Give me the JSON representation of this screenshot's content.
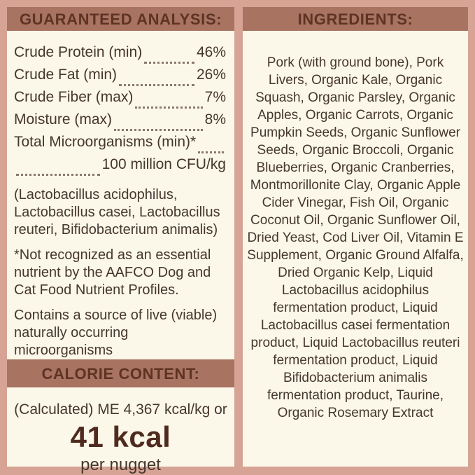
{
  "colors": {
    "frame_pink": "#d6a394",
    "band_terracotta": "#a87361",
    "panel_cream": "#fbf7e9",
    "body_text": "#46372d",
    "header_text": "#5e3324",
    "accent_value_text": "#4f2b1f"
  },
  "guaranteed_analysis": {
    "title": "GUARANTEED ANALYSIS:",
    "rows": [
      {
        "label": "Crude Protein (min)",
        "value": "46%"
      },
      {
        "label": "Crude Fat (min)",
        "value": "26%"
      },
      {
        "label": "Crude Fiber (max)",
        "value": "7%"
      },
      {
        "label": "Moisture (max)",
        "value": "8%"
      },
      {
        "label": "Total Microorganisms (min)*",
        "value": ""
      },
      {
        "label": "",
        "value": "100 million CFU/kg"
      }
    ],
    "notes": [
      "(Lactobacillus acidophilus, Lactobacillus casei, Lactobacillus reuteri, Bifidobacterium animalis)",
      "*Not recognized as an essential nutrient by the AAFCO Dog and Cat Food Nutrient Profiles.",
      "Contains a source of live (viable) naturally occurring microorganisms"
    ]
  },
  "calorie_content": {
    "title": "CALORIE CONTENT:",
    "line1": "(Calculated) ME 4,367 kcal/kg or",
    "value": "41 kcal",
    "unit": "per nugget"
  },
  "ingredients": {
    "title": "INGREDIENTS:",
    "text": "Pork (with ground bone), Pork Livers, Organic Kale, Organic Squash, Organic Parsley, Organic Apples, Organic Carrots, Organic Pumpkin Seeds, Organic Sunflower Seeds, Organic Broccoli, Organic Blueberries, Organic Cranberries, Montmorillonite Clay, Organic Apple Cider Vinegar, Fish Oil, Organic Coconut Oil, Organic Sunflower Oil, Dried Yeast, Cod Liver Oil, Vitamin E Supplement, Organic Ground Alfalfa, Dried Organic Kelp, Liquid Lactobacillus acidophilus fermentation product, Liquid Lactobacillus casei fermentation product, Liquid Lactobacillus reuteri fermentation product, Liquid Bifidobacterium animalis fermentation product, Taurine, Organic Rosemary Extract"
  }
}
